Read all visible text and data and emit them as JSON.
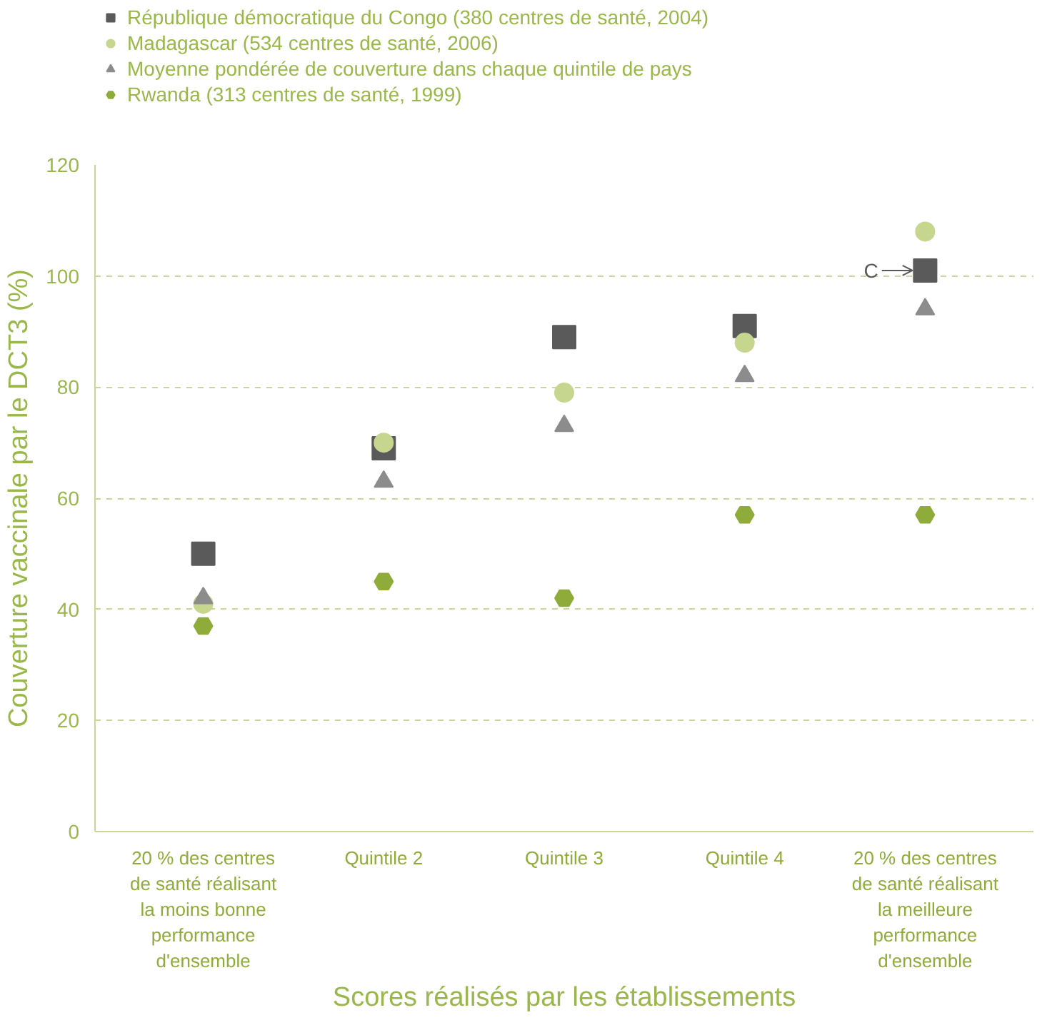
{
  "chart_data": {
    "type": "scatter",
    "xlabel": "Scores réalisés par les établissements",
    "ylabel": "Couverture vaccinale par le DCT3 (%)",
    "categories": [
      "20 % des centres de santé réalisant la moins bonne performance d'ensemble",
      "Quintile 2",
      "Quintile 3",
      "Quintile 4",
      "20 % des centres de santé réalisant la meilleure performance d'ensemble"
    ],
    "series": [
      {
        "name": "République démocratique du Congo (380 centres de santé, 2004)",
        "color": "#5a5a5a",
        "marker": "square",
        "values": [
          50,
          69,
          89,
          91,
          101
        ]
      },
      {
        "name": "Madagascar (534 centres de santé, 2006)",
        "color": "#c6d68f",
        "marker": "circle",
        "values": [
          41,
          70,
          79,
          88,
          108
        ]
      },
      {
        "name": "Moyenne pondérée de couverture dans chaque quintile de pays",
        "color": "#8c8c8c",
        "marker": "triangle",
        "values": [
          42,
          63,
          73,
          82,
          94
        ]
      },
      {
        "name": "Rwanda (313 centres de santé, 1999)",
        "color": "#8fac3a",
        "values": [
          37,
          45,
          42,
          57,
          57
        ]
      }
    ],
    "ylim": [
      0,
      120
    ],
    "yticks": [
      0,
      20,
      40,
      60,
      80,
      100,
      120
    ],
    "grid": "y",
    "legend": "top left",
    "annotations": [
      {
        "text": "C",
        "x": "20 % des centres de santé réalisant la meilleure performance d'ensemble",
        "y": 101
      }
    ]
  }
}
